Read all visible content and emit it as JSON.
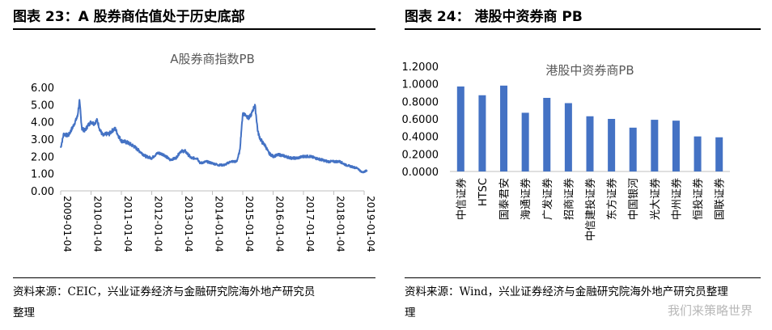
{
  "left": {
    "figure_title": "图表 23：A 股券商估值处于历史底部",
    "source_line1": "资料来源：CEIC，兴业证券经济与金融研究院海外地产研究员",
    "source_line2": "整理"
  },
  "right": {
    "figure_title": "图表 24：  港股中资券商 PB",
    "source_line1": "资料来源：Wind，兴业证券经济与金融研究院海外地产研究员整理",
    "source_line2": "理"
  },
  "watermark": "我们来策略世界",
  "chart_data": [
    {
      "type": "line",
      "title": "A股券商指数PB",
      "xlabel": "",
      "ylabel": "",
      "ylim": [
        0,
        6
      ],
      "y_ticks": [
        "0.00",
        "1.00",
        "2.00",
        "3.00",
        "4.00",
        "5.00",
        "6.00"
      ],
      "x_ticks": [
        "2009-01-04",
        "2010-01-04",
        "2011-01-04",
        "2012-01-04",
        "2013-01-04",
        "2014-01-04",
        "2015-01-04",
        "2016-01-04",
        "2017-01-04",
        "2018-01-04",
        "2019-01-04"
      ],
      "grid": false,
      "color": "#4472c4",
      "series": [
        {
          "x": [
            2009.0,
            2009.1,
            2009.25,
            2009.4,
            2009.55,
            2009.62,
            2009.7,
            2009.8,
            2009.9,
            2010.0,
            2010.1,
            2010.2,
            2010.3,
            2010.4,
            2010.5,
            2010.6,
            2010.7,
            2010.8,
            2010.9,
            2011.0,
            2011.2,
            2011.4,
            2011.6,
            2011.8,
            2012.0,
            2012.2,
            2012.4,
            2012.6,
            2012.8,
            2012.95,
            2013.1,
            2013.3,
            2013.5,
            2013.6,
            2013.8,
            2014.0,
            2014.2,
            2014.4,
            2014.6,
            2014.8,
            2014.9,
            2015.0,
            2015.1,
            2015.2,
            2015.3,
            2015.4,
            2015.45,
            2015.5,
            2015.58,
            2015.65,
            2015.75,
            2015.85,
            2016.0,
            2016.2,
            2016.4,
            2016.6,
            2016.8,
            2017.0,
            2017.2,
            2017.4,
            2017.6,
            2017.8,
            2018.0,
            2018.2,
            2018.4,
            2018.6,
            2018.8,
            2018.9,
            2019.0,
            2019.1
          ],
          "y": [
            2.5,
            3.3,
            3.2,
            3.7,
            4.3,
            5.2,
            3.6,
            3.5,
            3.8,
            4.0,
            3.9,
            4.1,
            3.5,
            3.2,
            3.3,
            3.3,
            3.5,
            3.6,
            3.2,
            2.9,
            2.8,
            2.6,
            2.3,
            2.0,
            1.9,
            2.2,
            2.1,
            1.8,
            1.9,
            2.3,
            2.3,
            1.9,
            1.9,
            1.6,
            1.7,
            1.6,
            1.5,
            1.5,
            1.7,
            1.7,
            2.3,
            4.5,
            4.4,
            4.2,
            4.5,
            5.0,
            4.2,
            3.4,
            3.0,
            2.8,
            2.6,
            2.2,
            2.0,
            2.1,
            2.0,
            1.9,
            1.9,
            2.0,
            2.0,
            1.9,
            1.8,
            1.7,
            1.7,
            1.7,
            1.5,
            1.4,
            1.3,
            1.1,
            1.1,
            1.2
          ]
        }
      ]
    },
    {
      "type": "bar",
      "title": "港股中资券商PB",
      "xlabel": "",
      "ylabel": "",
      "ylim": [
        0,
        1.2
      ],
      "y_ticks": [
        "0.0000",
        "0.2000",
        "0.4000",
        "0.6000",
        "0.8000",
        "1.0000",
        "1.2000"
      ],
      "grid": false,
      "color": "#4472c4",
      "categories": [
        "中信证券",
        "HTSC",
        "国泰君安",
        "海通证券",
        "广发证券",
        "招商证券",
        "中信建投证券",
        "东方证券",
        "中国银河",
        "光大证券",
        "中州证券",
        "恒投证券",
        "国联证券"
      ],
      "values": [
        0.97,
        0.87,
        0.98,
        0.67,
        0.84,
        0.78,
        0.63,
        0.6,
        0.5,
        0.59,
        0.58,
        0.4,
        0.39
      ]
    }
  ]
}
